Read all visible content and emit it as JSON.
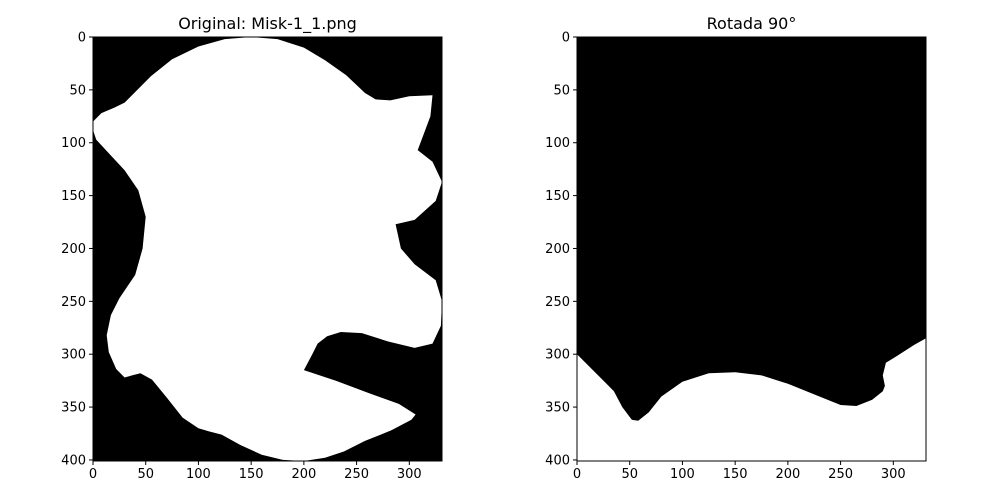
{
  "chart_data": [
    {
      "type": "image",
      "title": "Original: Misk-1_1.png",
      "xlim": [
        0,
        331
      ],
      "ylim": [
        401,
        0
      ],
      "xticks": [
        0,
        50,
        100,
        150,
        200,
        250,
        300
      ],
      "yticks": [
        0,
        50,
        100,
        150,
        200,
        250,
        300,
        350,
        400
      ],
      "background_color": "#000000",
      "foreground_color": "#ffffff",
      "mask_outline": [
        [
          0,
          80
        ],
        [
          8,
          72
        ],
        [
          20,
          67
        ],
        [
          30,
          62
        ],
        [
          40,
          52
        ],
        [
          55,
          37
        ],
        [
          75,
          21
        ],
        [
          100,
          9
        ],
        [
          125,
          2
        ],
        [
          150,
          0
        ],
        [
          175,
          2
        ],
        [
          200,
          10
        ],
        [
          220,
          22
        ],
        [
          240,
          36
        ],
        [
          258,
          53
        ],
        [
          268,
          59
        ],
        [
          282,
          60
        ],
        [
          300,
          56
        ],
        [
          322,
          55
        ],
        [
          320,
          75
        ],
        [
          308,
          107
        ],
        [
          322,
          118
        ],
        [
          331,
          137
        ],
        [
          325,
          155
        ],
        [
          305,
          173
        ],
        [
          287,
          177
        ],
        [
          292,
          200
        ],
        [
          305,
          215
        ],
        [
          325,
          230
        ],
        [
          331,
          250
        ],
        [
          330,
          273
        ],
        [
          322,
          290
        ],
        [
          305,
          294
        ],
        [
          280,
          288
        ],
        [
          255,
          280
        ],
        [
          235,
          279
        ],
        [
          222,
          283
        ],
        [
          213,
          290
        ],
        [
          208,
          300
        ],
        [
          200,
          315
        ],
        [
          230,
          325
        ],
        [
          262,
          337
        ],
        [
          290,
          347
        ],
        [
          306,
          357
        ],
        [
          302,
          362
        ],
        [
          283,
          372
        ],
        [
          258,
          382
        ],
        [
          238,
          392
        ],
        [
          220,
          398
        ],
        [
          200,
          401
        ],
        [
          180,
          400
        ],
        [
          160,
          395
        ],
        [
          140,
          386
        ],
        [
          122,
          376
        ],
        [
          110,
          373
        ],
        [
          100,
          370
        ],
        [
          85,
          360
        ],
        [
          70,
          341
        ],
        [
          56,
          324
        ],
        [
          45,
          318
        ],
        [
          37,
          320
        ],
        [
          30,
          322
        ],
        [
          22,
          314
        ],
        [
          15,
          298
        ],
        [
          13,
          282
        ],
        [
          17,
          263
        ],
        [
          25,
          247
        ],
        [
          40,
          225
        ],
        [
          47,
          200
        ],
        [
          50,
          170
        ],
        [
          43,
          145
        ],
        [
          30,
          126
        ],
        [
          15,
          110
        ],
        [
          3,
          97
        ],
        [
          0,
          88
        ]
      ]
    },
    {
      "type": "image",
      "title": "Rotada 90°",
      "xlim": [
        0,
        331
      ],
      "ylim": [
        401,
        0
      ],
      "xticks": [
        0,
        50,
        100,
        150,
        200,
        250,
        300
      ],
      "yticks": [
        0,
        50,
        100,
        150,
        200,
        250,
        300,
        350,
        400
      ],
      "background_color": "#000000",
      "foreground_color": "#ffffff",
      "mask_outline": [
        [
          0,
          300
        ],
        [
          10,
          310
        ],
        [
          25,
          325
        ],
        [
          35,
          335
        ],
        [
          43,
          350
        ],
        [
          52,
          362
        ],
        [
          58,
          363
        ],
        [
          68,
          355
        ],
        [
          80,
          340
        ],
        [
          100,
          326
        ],
        [
          125,
          318
        ],
        [
          150,
          317
        ],
        [
          175,
          320
        ],
        [
          200,
          328
        ],
        [
          225,
          338
        ],
        [
          250,
          348
        ],
        [
          265,
          349
        ],
        [
          280,
          343
        ],
        [
          290,
          335
        ],
        [
          292,
          330
        ],
        [
          290,
          320
        ],
        [
          293,
          308
        ],
        [
          303,
          302
        ],
        [
          320,
          291
        ],
        [
          331,
          285
        ],
        [
          331,
          401
        ],
        [
          0,
          401
        ]
      ]
    }
  ]
}
